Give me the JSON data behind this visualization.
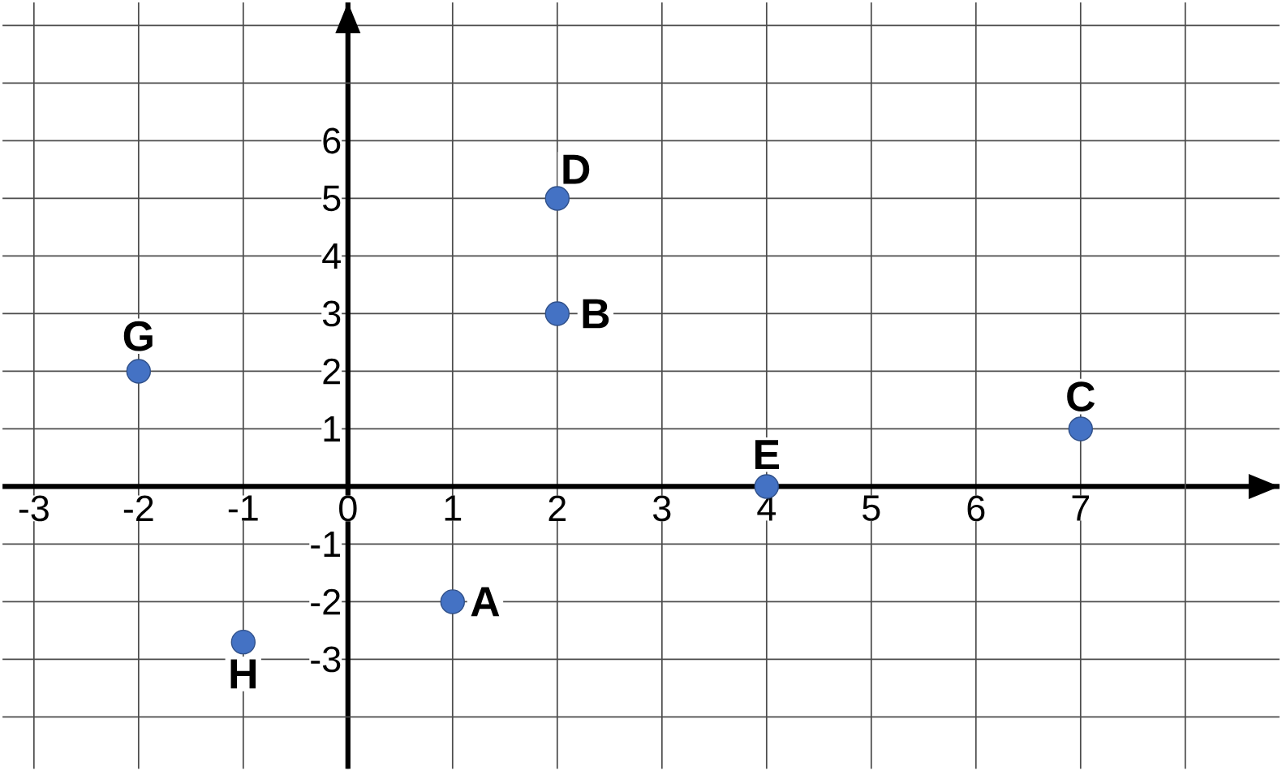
{
  "chart_data": {
    "type": "scatter",
    "x": [
      1,
      2,
      7,
      2,
      4,
      -2,
      -1
    ],
    "values": [
      -2,
      3,
      1,
      5,
      0,
      2,
      -2.7
    ],
    "color": "#4472c4",
    "grid": true,
    "xlim": [
      -3.3,
      8.9
    ],
    "ylim": [
      -4.9,
      8.4
    ],
    "xticks": [
      -3,
      -2,
      -1,
      0,
      1,
      2,
      3,
      4,
      5,
      6,
      7,
      {
        "value": 8,
        "label": null
      }
    ],
    "yticks": [
      {
        "value": -4,
        "label": null
      },
      -3,
      -2,
      -1,
      1,
      2,
      3,
      4,
      5,
      6,
      {
        "value": 7,
        "label": null
      },
      {
        "value": 8,
        "label": null
      }
    ],
    "annotations": [
      {
        "text": "A",
        "x": 1,
        "y": -2
      },
      {
        "text": "B",
        "x": 2,
        "y": 3
      },
      {
        "text": "C",
        "x": 7,
        "y": 1
      },
      {
        "text": "D",
        "x": 2,
        "y": 5
      },
      {
        "text": "E",
        "x": 4,
        "y": 0
      },
      {
        "text": "G",
        "x": -2,
        "y": 2
      },
      {
        "text": "H",
        "x": -1,
        "y": -2.7
      }
    ]
  }
}
